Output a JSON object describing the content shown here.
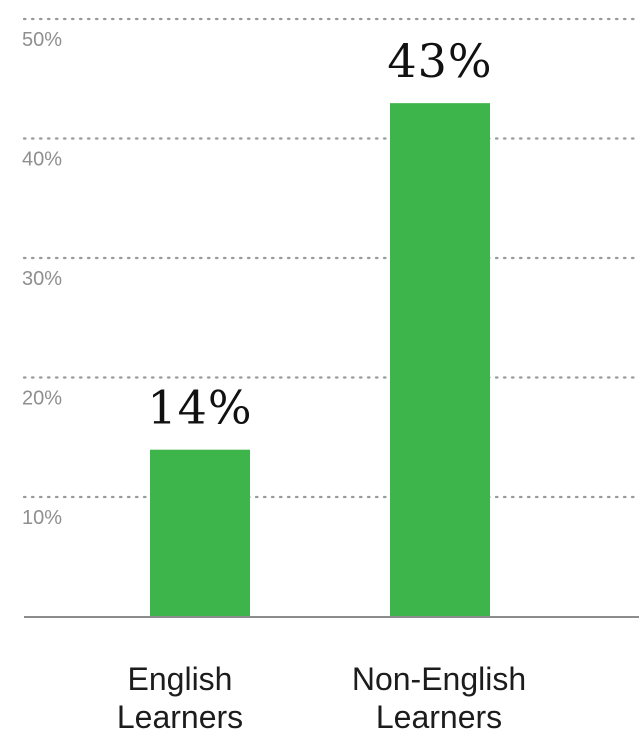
{
  "chart_data": {
    "type": "bar",
    "categories": [
      [
        "English",
        "Learners"
      ],
      [
        "Non-English",
        "Learners"
      ]
    ],
    "values": [
      14,
      43
    ],
    "value_labels": [
      "14%",
      "43%"
    ],
    "y_ticks": [
      10,
      20,
      30,
      40,
      50
    ],
    "y_tick_labels": [
      "10%",
      "20%",
      "30%",
      "40%",
      "50%"
    ],
    "ylim": [
      0,
      50
    ],
    "grid": true,
    "bar_color": "#3db54a",
    "title": "",
    "xlabel": "",
    "ylabel": ""
  }
}
